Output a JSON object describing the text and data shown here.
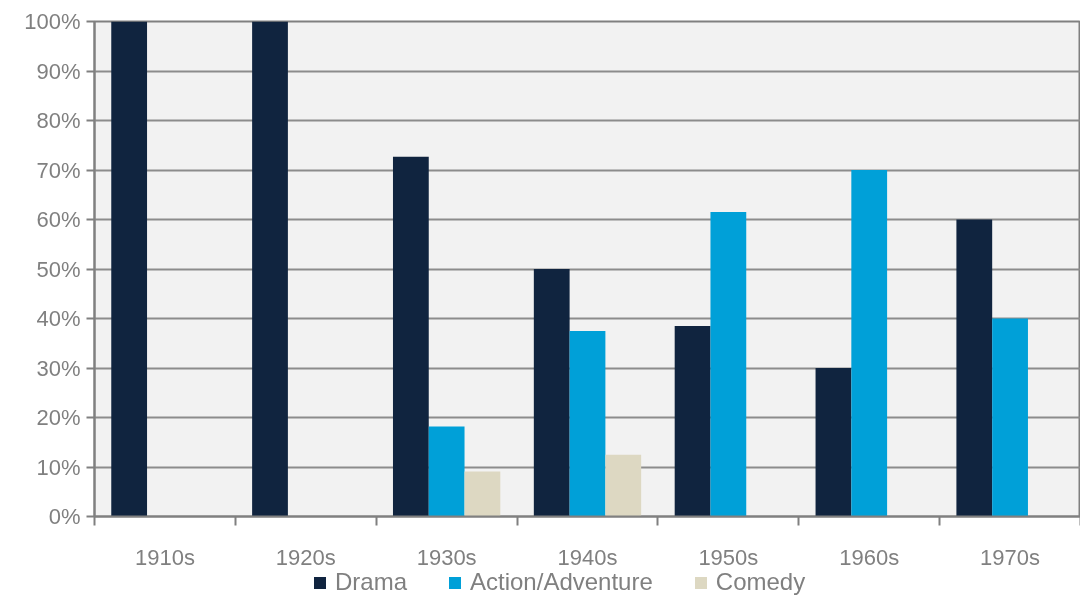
{
  "chart_data": {
    "type": "bar",
    "categories": [
      "1910s",
      "1920s",
      "1930s",
      "1940s",
      "1950s",
      "1960s",
      "1970s"
    ],
    "series": [
      {
        "name": "Drama",
        "color": "#10243f",
        "values": [
          100,
          100,
          72.7,
          50,
          38.5,
          30,
          60
        ]
      },
      {
        "name": "Action/Adventure",
        "color": "#00a0d8",
        "values": [
          null,
          null,
          18.2,
          37.5,
          61.5,
          70,
          40
        ]
      },
      {
        "name": "Comedy",
        "color": "#ddd8c2",
        "values": [
          null,
          null,
          9.1,
          12.5,
          null,
          null,
          null
        ]
      }
    ],
    "ylim": [
      0,
      100
    ],
    "yticks": [
      {
        "value": 0,
        "label": "0%"
      },
      {
        "value": 10,
        "label": "10%"
      },
      {
        "value": 20,
        "label": "20%"
      },
      {
        "value": 30,
        "label": "30%"
      },
      {
        "value": 40,
        "label": "40%"
      },
      {
        "value": 50,
        "label": "50%"
      },
      {
        "value": 60,
        "label": "60%"
      },
      {
        "value": 70,
        "label": "70%"
      },
      {
        "value": 80,
        "label": "80%"
      },
      {
        "value": 90,
        "label": "90%"
      },
      {
        "value": 100,
        "label": "100%"
      }
    ],
    "grid": "y",
    "legend": "bottom"
  }
}
